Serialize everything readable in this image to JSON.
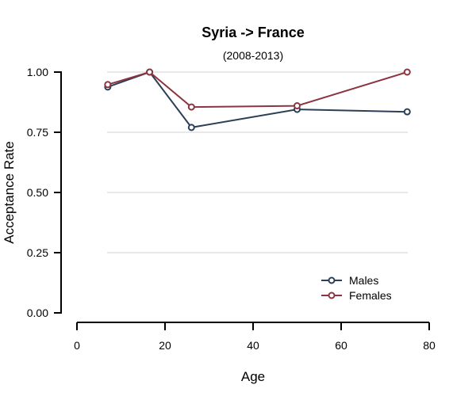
{
  "chart_data": {
    "type": "line",
    "title": "Syria  ->  France",
    "subtitle": "(2008-2013)",
    "xlabel": "Age",
    "ylabel": "Acceptance Rate",
    "xlim": [
      0,
      80
    ],
    "ylim": [
      0,
      1
    ],
    "x_ticks": [
      "0",
      "20",
      "40",
      "60",
      "80"
    ],
    "y_ticks": [
      "0.00",
      "0.25",
      "0.50",
      "0.75",
      "1.00"
    ],
    "grid": "horizontal",
    "legend_position": "bottom-right",
    "series": [
      {
        "name": "Males",
        "color": "#2b4057",
        "x": [
          7,
          16.5,
          26,
          50,
          75
        ],
        "y": [
          0.938,
          1.0,
          0.77,
          0.845,
          0.835
        ]
      },
      {
        "name": "Females",
        "color": "#8c3540",
        "x": [
          7,
          16.5,
          26,
          50,
          75
        ],
        "y": [
          0.948,
          1.0,
          0.855,
          0.86,
          1.0
        ]
      }
    ]
  }
}
